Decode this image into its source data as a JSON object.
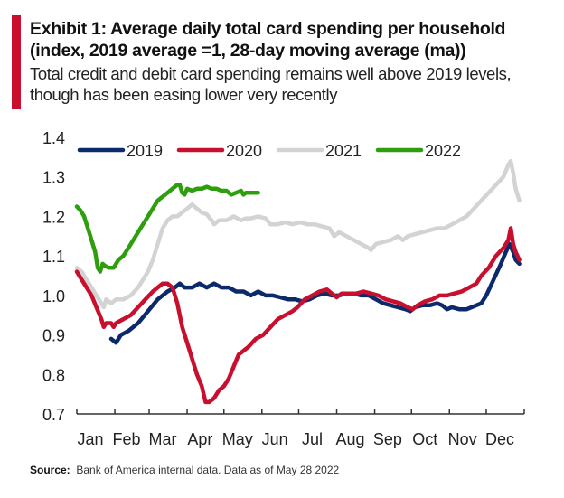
{
  "header": {
    "title": "Exhibit 1: Average daily total card spending per household (index, 2019 average =1, 28-day moving average (ma))",
    "subtitle": "Total credit and debit card spending remains well above 2019 levels, though has been easing lower very recently"
  },
  "footer": {
    "source_label": "Source:",
    "source_text": "Bank of America internal data. Data as of May 28 2022"
  },
  "chart_data": {
    "type": "line",
    "title": "Exhibit 1: Average daily total card spending per household (index, 2019 average =1, 28-day moving average (ma))",
    "xlabel": "",
    "ylabel": "",
    "x_unit": "day of year",
    "xlim": [
      0,
      365
    ],
    "ylim": [
      0.7,
      1.4
    ],
    "yticks": [
      0.7,
      0.8,
      0.9,
      1.0,
      1.1,
      1.2,
      1.3,
      1.4
    ],
    "ytick_labels": [
      "0.7",
      "0.8",
      "0.9",
      "1.0",
      "1.1",
      "1.2",
      "1.3",
      "1.4"
    ],
    "xtick_positions": [
      0,
      31,
      59,
      90,
      120,
      151,
      181,
      212,
      243,
      273,
      304,
      334,
      365
    ],
    "month_labels": [
      "Jan",
      "Feb",
      "Mar",
      "Apr",
      "May",
      "Jun",
      "Jul",
      "Aug",
      "Sep",
      "Oct",
      "Nov",
      "Dec"
    ],
    "grid": false,
    "legend": {
      "placement": "top",
      "entries": [
        "2019",
        "2020",
        "2021",
        "2022"
      ]
    },
    "series": [
      {
        "name": "2019",
        "color": "#0b2a6b",
        "points": [
          [
            28,
            0.89
          ],
          [
            32,
            0.88
          ],
          [
            36,
            0.9
          ],
          [
            42,
            0.91
          ],
          [
            50,
            0.93
          ],
          [
            58,
            0.96
          ],
          [
            66,
            0.99
          ],
          [
            74,
            1.01
          ],
          [
            80,
            1.02
          ],
          [
            84,
            1.03
          ],
          [
            88,
            1.02
          ],
          [
            94,
            1.02
          ],
          [
            100,
            1.03
          ],
          [
            106,
            1.02
          ],
          [
            112,
            1.03
          ],
          [
            118,
            1.02
          ],
          [
            124,
            1.02
          ],
          [
            130,
            1.01
          ],
          [
            136,
            1.01
          ],
          [
            142,
            1.0
          ],
          [
            148,
            1.01
          ],
          [
            154,
            1.0
          ],
          [
            160,
            1.0
          ],
          [
            166,
            0.995
          ],
          [
            172,
            0.99
          ],
          [
            178,
            0.99
          ],
          [
            184,
            0.985
          ],
          [
            190,
            0.99
          ],
          [
            196,
            1.0
          ],
          [
            202,
            1.005
          ],
          [
            208,
            1.0
          ],
          [
            214,
            1.0
          ],
          [
            220,
            1.005
          ],
          [
            226,
            1.005
          ],
          [
            232,
            1.0
          ],
          [
            238,
            1.0
          ],
          [
            244,
            0.99
          ],
          [
            250,
            0.98
          ],
          [
            256,
            0.975
          ],
          [
            262,
            0.97
          ],
          [
            268,
            0.965
          ],
          [
            272,
            0.96
          ],
          [
            276,
            0.97
          ],
          [
            282,
            0.975
          ],
          [
            288,
            0.975
          ],
          [
            294,
            0.98
          ],
          [
            298,
            0.975
          ],
          [
            302,
            0.965
          ],
          [
            306,
            0.97
          ],
          [
            312,
            0.965
          ],
          [
            318,
            0.965
          ],
          [
            322,
            0.97
          ],
          [
            326,
            0.975
          ],
          [
            330,
            0.98
          ],
          [
            334,
            1.0
          ],
          [
            340,
            1.04
          ],
          [
            346,
            1.08
          ],
          [
            350,
            1.11
          ],
          [
            353,
            1.13
          ],
          [
            356,
            1.11
          ],
          [
            358,
            1.09
          ],
          [
            361,
            1.08
          ]
        ]
      },
      {
        "name": "2020",
        "color": "#c8102e",
        "points": [
          [
            0,
            1.06
          ],
          [
            4,
            1.04
          ],
          [
            8,
            1.02
          ],
          [
            12,
            1.0
          ],
          [
            16,
            0.97
          ],
          [
            20,
            0.94
          ],
          [
            22,
            0.92
          ],
          [
            24,
            0.93
          ],
          [
            28,
            0.93
          ],
          [
            30,
            0.92
          ],
          [
            32,
            0.93
          ],
          [
            38,
            0.94
          ],
          [
            44,
            0.95
          ],
          [
            50,
            0.97
          ],
          [
            56,
            0.99
          ],
          [
            62,
            1.01
          ],
          [
            66,
            1.02
          ],
          [
            70,
            1.03
          ],
          [
            74,
            1.03
          ],
          [
            78,
            1.02
          ],
          [
            82,
            0.98
          ],
          [
            86,
            0.92
          ],
          [
            90,
            0.88
          ],
          [
            94,
            0.84
          ],
          [
            98,
            0.8
          ],
          [
            102,
            0.77
          ],
          [
            105,
            0.73
          ],
          [
            108,
            0.73
          ],
          [
            112,
            0.74
          ],
          [
            116,
            0.76
          ],
          [
            120,
            0.77
          ],
          [
            124,
            0.79
          ],
          [
            128,
            0.82
          ],
          [
            132,
            0.85
          ],
          [
            136,
            0.86
          ],
          [
            140,
            0.87
          ],
          [
            146,
            0.89
          ],
          [
            152,
            0.9
          ],
          [
            158,
            0.92
          ],
          [
            164,
            0.94
          ],
          [
            170,
            0.95
          ],
          [
            176,
            0.96
          ],
          [
            180,
            0.97
          ],
          [
            186,
            0.99
          ],
          [
            192,
            1.0
          ],
          [
            198,
            1.01
          ],
          [
            204,
            1.015
          ],
          [
            208,
            1.005
          ],
          [
            212,
            0.995
          ],
          [
            216,
            1.005
          ],
          [
            222,
            1.005
          ],
          [
            228,
            1.005
          ],
          [
            234,
            1.01
          ],
          [
            240,
            1.005
          ],
          [
            246,
            1.0
          ],
          [
            252,
            0.99
          ],
          [
            258,
            0.985
          ],
          [
            264,
            0.98
          ],
          [
            270,
            0.97
          ],
          [
            274,
            0.965
          ],
          [
            278,
            0.975
          ],
          [
            284,
            0.985
          ],
          [
            290,
            0.99
          ],
          [
            296,
            1.0
          ],
          [
            302,
            1.0
          ],
          [
            308,
            1.005
          ],
          [
            314,
            1.01
          ],
          [
            320,
            1.02
          ],
          [
            326,
            1.03
          ],
          [
            330,
            1.05
          ],
          [
            336,
            1.07
          ],
          [
            342,
            1.1
          ],
          [
            348,
            1.12
          ],
          [
            352,
            1.14
          ],
          [
            354,
            1.17
          ],
          [
            356,
            1.13
          ],
          [
            358,
            1.11
          ],
          [
            361,
            1.09
          ]
        ]
      },
      {
        "name": "2021",
        "color": "#d3d3d3",
        "points": [
          [
            0,
            1.07
          ],
          [
            4,
            1.06
          ],
          [
            8,
            1.04
          ],
          [
            12,
            1.02
          ],
          [
            16,
            1.0
          ],
          [
            20,
            0.98
          ],
          [
            22,
            0.97
          ],
          [
            24,
            0.99
          ],
          [
            28,
            0.98
          ],
          [
            32,
            0.99
          ],
          [
            38,
            0.99
          ],
          [
            44,
            1.0
          ],
          [
            50,
            1.02
          ],
          [
            54,
            1.04
          ],
          [
            58,
            1.06
          ],
          [
            62,
            1.09
          ],
          [
            66,
            1.13
          ],
          [
            70,
            1.17
          ],
          [
            74,
            1.19
          ],
          [
            78,
            1.2
          ],
          [
            82,
            1.2
          ],
          [
            86,
            1.21
          ],
          [
            90,
            1.22
          ],
          [
            94,
            1.23
          ],
          [
            98,
            1.22
          ],
          [
            102,
            1.21
          ],
          [
            106,
            1.205
          ],
          [
            110,
            1.19
          ],
          [
            112,
            1.18
          ],
          [
            116,
            1.19
          ],
          [
            122,
            1.19
          ],
          [
            128,
            1.2
          ],
          [
            134,
            1.19
          ],
          [
            138,
            1.195
          ],
          [
            142,
            1.195
          ],
          [
            148,
            1.2
          ],
          [
            154,
            1.195
          ],
          [
            158,
            1.18
          ],
          [
            164,
            1.18
          ],
          [
            170,
            1.185
          ],
          [
            176,
            1.18
          ],
          [
            182,
            1.185
          ],
          [
            188,
            1.18
          ],
          [
            194,
            1.18
          ],
          [
            200,
            1.175
          ],
          [
            206,
            1.17
          ],
          [
            210,
            1.15
          ],
          [
            214,
            1.16
          ],
          [
            220,
            1.15
          ],
          [
            226,
            1.14
          ],
          [
            232,
            1.13
          ],
          [
            238,
            1.12
          ],
          [
            240,
            1.115
          ],
          [
            244,
            1.13
          ],
          [
            250,
            1.135
          ],
          [
            256,
            1.14
          ],
          [
            262,
            1.15
          ],
          [
            266,
            1.14
          ],
          [
            270,
            1.15
          ],
          [
            276,
            1.155
          ],
          [
            282,
            1.16
          ],
          [
            288,
            1.165
          ],
          [
            294,
            1.17
          ],
          [
            300,
            1.17
          ],
          [
            306,
            1.18
          ],
          [
            312,
            1.19
          ],
          [
            318,
            1.2
          ],
          [
            324,
            1.22
          ],
          [
            330,
            1.24
          ],
          [
            336,
            1.26
          ],
          [
            342,
            1.28
          ],
          [
            348,
            1.3
          ],
          [
            352,
            1.33
          ],
          [
            354,
            1.34
          ],
          [
            356,
            1.31
          ],
          [
            358,
            1.27
          ],
          [
            361,
            1.24
          ]
        ]
      },
      {
        "name": "2022",
        "color": "#2e9e0f",
        "points": [
          [
            0,
            1.225
          ],
          [
            3,
            1.215
          ],
          [
            6,
            1.2
          ],
          [
            9,
            1.17
          ],
          [
            12,
            1.14
          ],
          [
            15,
            1.11
          ],
          [
            17,
            1.07
          ],
          [
            19,
            1.06
          ],
          [
            21,
            1.08
          ],
          [
            23,
            1.075
          ],
          [
            26,
            1.07
          ],
          [
            30,
            1.07
          ],
          [
            34,
            1.09
          ],
          [
            38,
            1.1
          ],
          [
            42,
            1.12
          ],
          [
            46,
            1.14
          ],
          [
            50,
            1.16
          ],
          [
            54,
            1.18
          ],
          [
            58,
            1.2
          ],
          [
            62,
            1.22
          ],
          [
            66,
            1.24
          ],
          [
            70,
            1.25
          ],
          [
            74,
            1.26
          ],
          [
            78,
            1.27
          ],
          [
            82,
            1.28
          ],
          [
            84,
            1.28
          ],
          [
            86,
            1.26
          ],
          [
            88,
            1.255
          ],
          [
            90,
            1.27
          ],
          [
            94,
            1.265
          ],
          [
            98,
            1.27
          ],
          [
            102,
            1.27
          ],
          [
            106,
            1.275
          ],
          [
            110,
            1.27
          ],
          [
            114,
            1.27
          ],
          [
            118,
            1.265
          ],
          [
            122,
            1.265
          ],
          [
            126,
            1.255
          ],
          [
            130,
            1.26
          ],
          [
            134,
            1.265
          ],
          [
            136,
            1.255
          ],
          [
            138,
            1.26
          ],
          [
            142,
            1.26
          ],
          [
            146,
            1.26
          ],
          [
            148,
            1.26
          ]
        ]
      }
    ]
  }
}
